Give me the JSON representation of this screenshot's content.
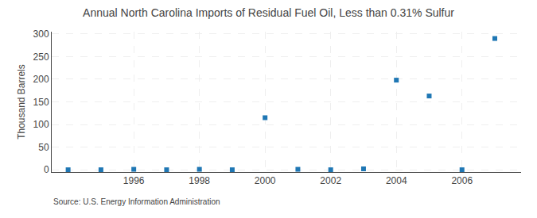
{
  "chart_data": {
    "type": "scatter",
    "title": "Annual North Carolina Imports of Residual Fuel Oil, Less than 0.31% Sulfur",
    "ylabel": "Thousand Barrels",
    "annotations": [
      "Source: U.S. Energy Information Administration"
    ],
    "x": [
      1994,
      1995,
      1996,
      1997,
      1998,
      1999,
      2000,
      2001,
      2002,
      2003,
      2004,
      2005,
      2006,
      2007
    ],
    "values": [
      0,
      0,
      1,
      0,
      1,
      0,
      115,
      1,
      0,
      2,
      198,
      163,
      0,
      290
    ],
    "marker": "square",
    "xlim": [
      1993.5,
      2007.8
    ],
    "xticks": [
      1996,
      1998,
      2000,
      2002,
      2004,
      2006
    ],
    "ylim": [
      -5,
      305
    ],
    "yticks": [
      0,
      50,
      100,
      150,
      200,
      250,
      300
    ],
    "grid": true
  }
}
